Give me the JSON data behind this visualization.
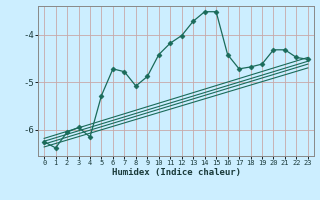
{
  "xlabel": "Humidex (Indice chaleur)",
  "bg_color": "#cceeff",
  "grid_color": "#c8a8a8",
  "line_color": "#1a6b5a",
  "xlim": [
    -0.5,
    23.5
  ],
  "ylim": [
    -6.55,
    -3.4
  ],
  "yticks": [
    -6,
    -5,
    -4
  ],
  "xticks": [
    0,
    1,
    2,
    3,
    4,
    5,
    6,
    7,
    8,
    9,
    10,
    11,
    12,
    13,
    14,
    15,
    16,
    17,
    18,
    19,
    20,
    21,
    22,
    23
  ],
  "series": [
    [
      0,
      -6.25
    ],
    [
      1,
      -6.38
    ],
    [
      2,
      -6.05
    ],
    [
      3,
      -5.95
    ],
    [
      4,
      -6.15
    ],
    [
      5,
      -5.28
    ],
    [
      6,
      -4.72
    ],
    [
      7,
      -4.78
    ],
    [
      8,
      -5.08
    ],
    [
      9,
      -4.88
    ],
    [
      10,
      -4.42
    ],
    [
      11,
      -4.18
    ],
    [
      12,
      -4.02
    ],
    [
      13,
      -3.72
    ],
    [
      14,
      -3.52
    ],
    [
      15,
      -3.52
    ],
    [
      16,
      -4.42
    ],
    [
      17,
      -4.72
    ],
    [
      18,
      -4.68
    ],
    [
      19,
      -4.62
    ],
    [
      20,
      -4.32
    ],
    [
      21,
      -4.32
    ],
    [
      22,
      -4.48
    ],
    [
      23,
      -4.52
    ]
  ],
  "regression_lines": [
    {
      "x0": 0,
      "y0": -6.18,
      "x1": 23,
      "y1": -4.48
    },
    {
      "x0": 0,
      "y0": -6.24,
      "x1": 23,
      "y1": -4.56
    },
    {
      "x0": 0,
      "y0": -6.3,
      "x1": 23,
      "y1": -4.62
    },
    {
      "x0": 0,
      "y0": -6.36,
      "x1": 23,
      "y1": -4.7
    }
  ]
}
